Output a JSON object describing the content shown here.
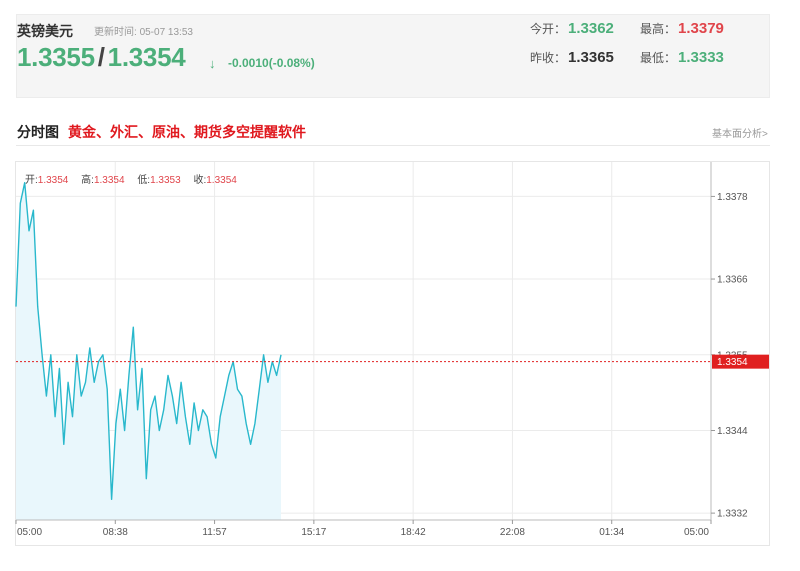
{
  "quote": {
    "name": "英镑美元",
    "update_label": "更新时间:",
    "update_time": "05-07 13:53",
    "price_bid": "1.3355",
    "price_sep": "/",
    "price_ask": "1.3354",
    "arrow": "↓",
    "change": "-0.0010(-0.08%)",
    "open_label": "今开：",
    "open": "1.3362",
    "high_label": "最高：",
    "high": "1.3379",
    "prev_close_label": "昨收：",
    "prev_close": "1.3365",
    "low_label": "最低：",
    "low": "1.3333"
  },
  "section": {
    "title": "分时图",
    "promo": "黄金、外汇、原油、期货多空提醒软件",
    "fundamental_link": "基本面分析>"
  },
  "ohlc": {
    "open_label": "开:",
    "open": "1.3354",
    "high_label": "高:",
    "high": "1.3354",
    "low_label": "低:",
    "low": "1.3353",
    "close_label": "收:",
    "close": "1.3354"
  },
  "colors": {
    "line": "#29b8cc",
    "fill": "#e9f7fc",
    "current_price": "#e02020",
    "grid": "#ebebeb"
  },
  "chart_data": {
    "type": "area",
    "title": "",
    "xlabel": "",
    "ylabel": "",
    "x_ticks": [
      "05:00",
      "08:38",
      "11:57",
      "15:17",
      "18:42",
      "22:08",
      "01:34",
      "05:00"
    ],
    "y_ticks": [
      "1.3378",
      "1.3366",
      "1.3355",
      "1.3344",
      "1.3332"
    ],
    "ylim": [
      1.3331,
      1.3383
    ],
    "grid": true,
    "current_price": 1.3354,
    "current_price_label": "1.3354",
    "series": [
      {
        "x_hours": [
          0,
          0.15,
          0.3,
          0.45,
          0.6,
          0.75,
          0.9,
          1.05,
          1.2,
          1.35,
          1.5,
          1.65,
          1.8,
          1.95,
          2.1,
          2.25,
          2.4,
          2.55,
          2.7,
          2.85,
          3.0,
          3.15,
          3.3,
          3.45,
          3.6,
          3.75,
          3.9,
          4.05,
          4.2,
          4.35,
          4.5,
          4.65,
          4.8,
          4.95,
          5.1,
          5.25,
          5.4,
          5.55,
          5.7,
          5.85,
          6.0,
          6.15,
          6.3,
          6.45,
          6.6,
          6.75,
          6.9,
          7.05,
          7.2,
          7.35,
          7.5,
          7.65,
          7.8,
          7.95,
          8.1,
          8.25,
          8.4,
          8.55,
          8.7,
          8.85,
          9.0,
          9.15
        ],
        "values": [
          1.3362,
          1.3377,
          1.338,
          1.3373,
          1.3376,
          1.3362,
          1.3355,
          1.3349,
          1.3355,
          1.3346,
          1.3353,
          1.3342,
          1.3351,
          1.3346,
          1.3355,
          1.3349,
          1.3351,
          1.3356,
          1.3351,
          1.3354,
          1.3355,
          1.335,
          1.3334,
          1.3345,
          1.335,
          1.3344,
          1.3352,
          1.3359,
          1.3347,
          1.3353,
          1.3337,
          1.3347,
          1.3349,
          1.3344,
          1.3347,
          1.3352,
          1.3349,
          1.3345,
          1.3351,
          1.3346,
          1.3342,
          1.3348,
          1.3344,
          1.3347,
          1.3346,
          1.3342,
          1.334,
          1.3346,
          1.3349,
          1.3352,
          1.3354,
          1.335,
          1.3349,
          1.3345,
          1.3342,
          1.3345,
          1.335,
          1.3355,
          1.3351,
          1.3354,
          1.3352,
          1.3355
        ]
      }
    ]
  }
}
